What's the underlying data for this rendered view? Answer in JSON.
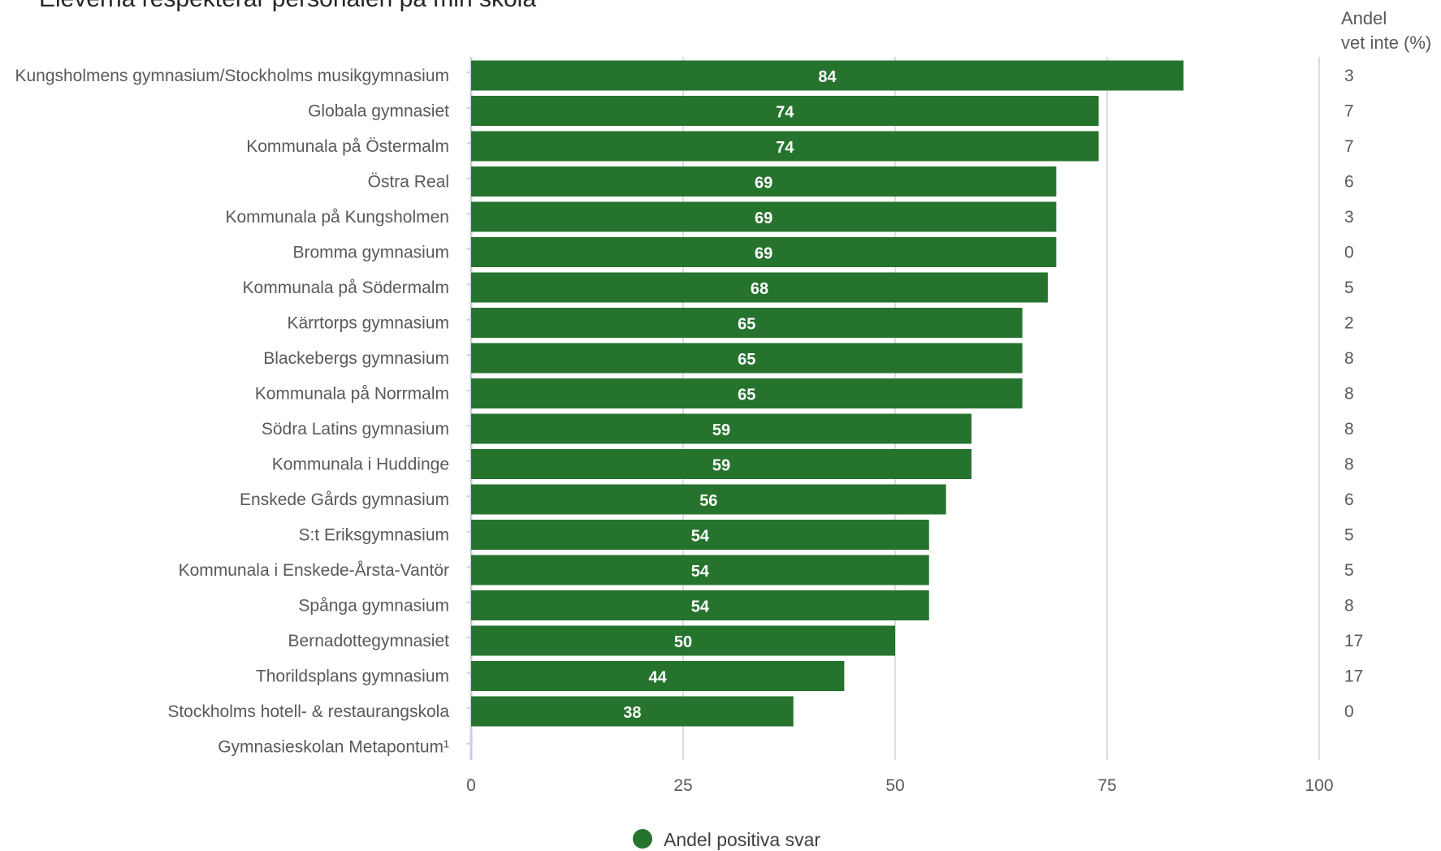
{
  "chart_data": {
    "type": "bar",
    "orientation": "horizontal",
    "title": "Eleverna respekterar personalen på min skola",
    "categories": [
      "Kungsholmens gymnasium/Stockholms musikgymnasium",
      "Globala gymnasiet",
      "Kommunala på Östermalm",
      "Östra Real",
      "Kommunala på Kungsholmen",
      "Bromma gymnasium",
      "Kommunala på Södermalm",
      "Kärrtorps gymnasium",
      "Blackebergs gymnasium",
      "Kommunala på Norrmalm",
      "Södra Latins gymnasium",
      "Kommunala i Huddinge",
      "Enskede Gårds gymnasium",
      "S:t Eriksgymnasium",
      "Kommunala i Enskede-Årsta-Vantör",
      "Spånga gymnasium",
      "Bernadottegymnasiet",
      "Thorildsplans gymnasium",
      "Stockholms hotell- & restaurangskola",
      "Gymnasieskolan Metapontum¹"
    ],
    "series": [
      {
        "name": "Andel positiva svar",
        "color": "#26732d",
        "values": [
          84,
          74,
          74,
          69,
          69,
          69,
          68,
          65,
          65,
          65,
          59,
          59,
          56,
          54,
          54,
          54,
          50,
          44,
          38,
          null
        ],
        "data_labels": [
          "84",
          "74",
          "74",
          "69",
          "69",
          "69",
          "68",
          "65",
          "65",
          "65",
          "59",
          "59",
          "56",
          "54",
          "54",
          "54",
          "50",
          "44",
          "38",
          ""
        ]
      }
    ],
    "side_column": {
      "header_line1": "Andel",
      "header_line2": "vet inte (%)",
      "values": [
        "3",
        "7",
        "7",
        "6",
        "3",
        "0",
        "5",
        "2",
        "8",
        "8",
        "8",
        "8",
        "6",
        "5",
        "5",
        "8",
        "17",
        "17",
        "0",
        ""
      ]
    },
    "x_ticks": [
      "0",
      "25",
      "50",
      "75",
      "100"
    ],
    "xlim": [
      0,
      100
    ],
    "grid": true,
    "legend_position": "bottom-center",
    "colors": {
      "bar": "#26732d",
      "bar_label": "#ffffff",
      "grid": "#d9dde6",
      "axis": "#c7cfe0",
      "text": "#595959",
      "title": "#262626"
    }
  }
}
